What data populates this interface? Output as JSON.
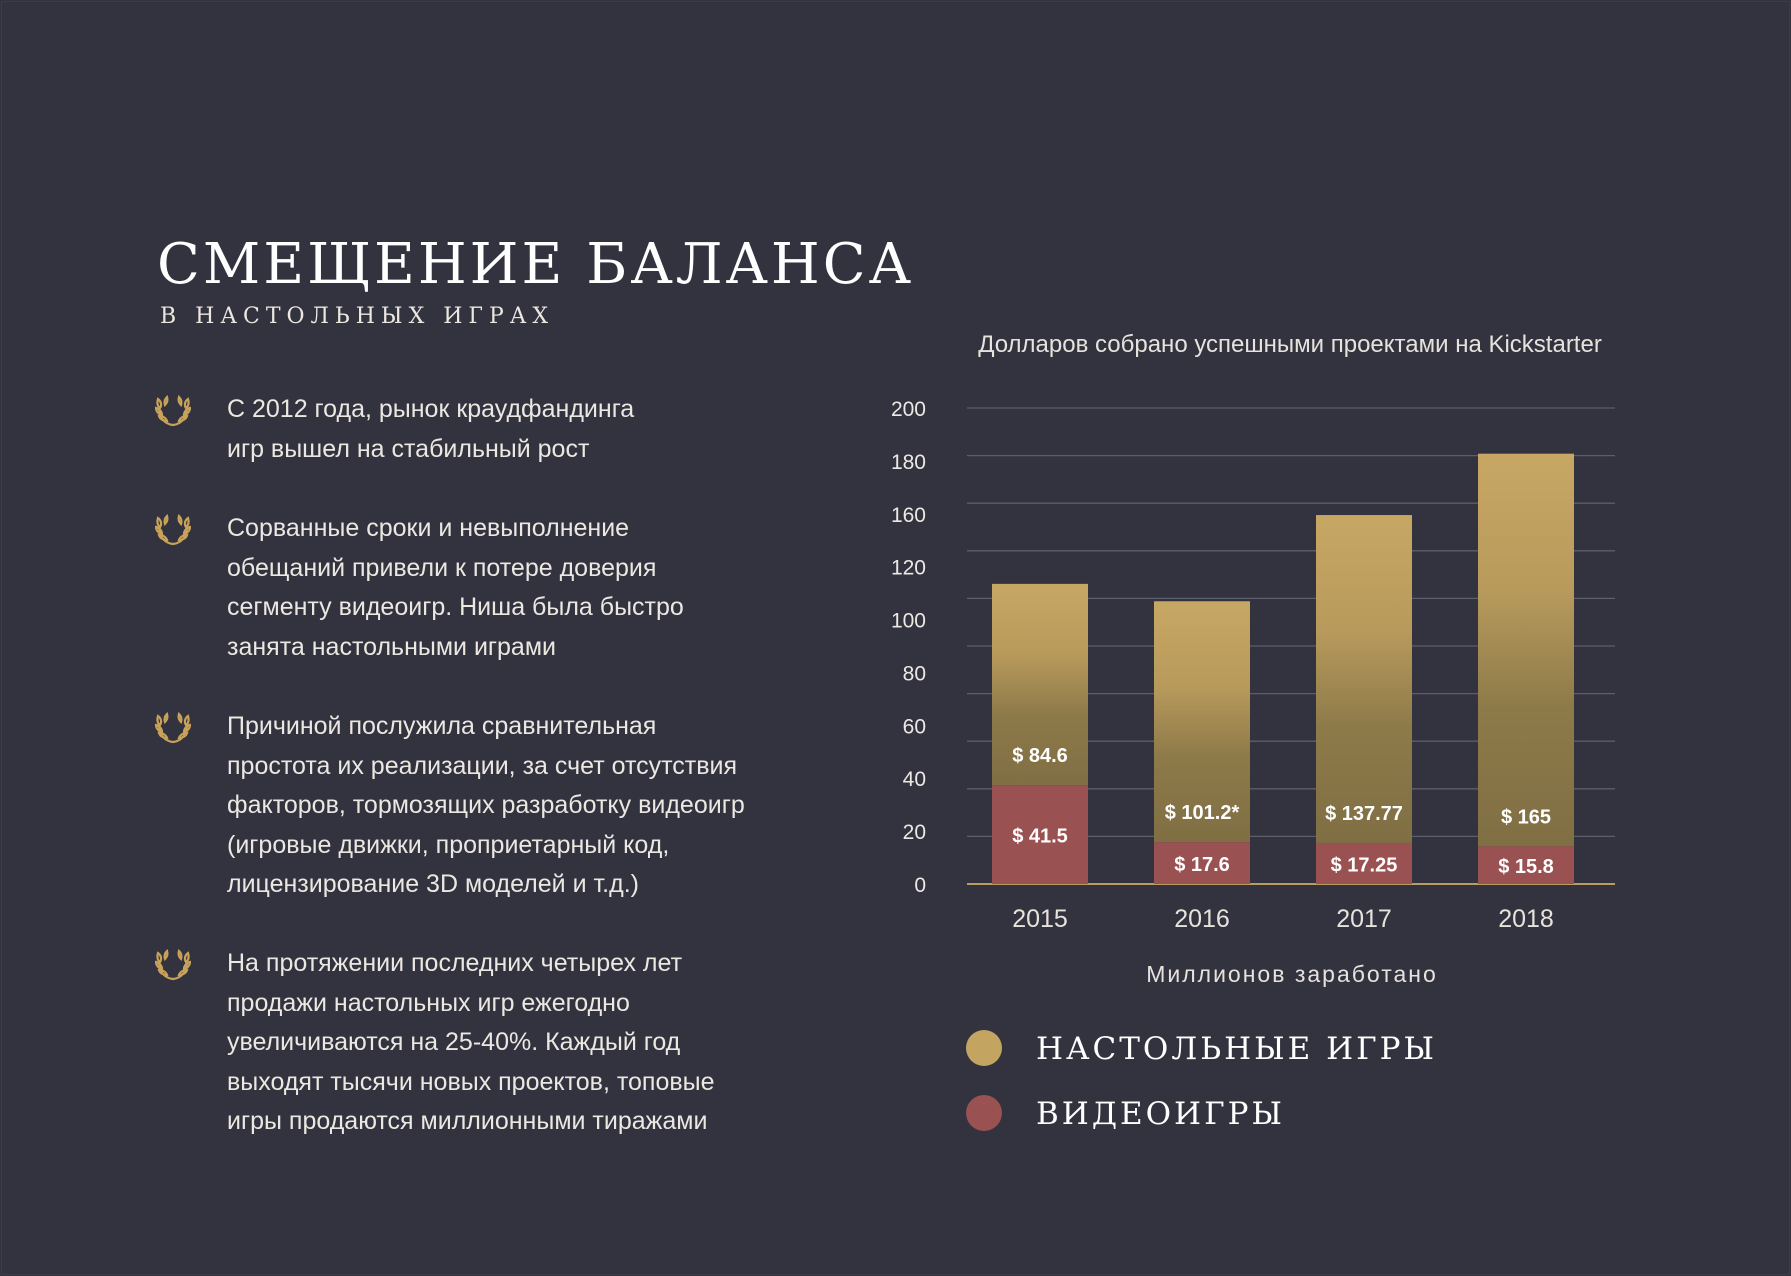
{
  "header": {
    "title": "СМЕЩЕНИЕ БАЛАНСА",
    "subtitle": "В НАСТОЛЬНЫХ ИГРАХ"
  },
  "bullets": [
    {
      "icon": "laurel-icon",
      "text": "С 2012 года, рынок краудфандинга\nигр вышел на стабильный рост"
    },
    {
      "icon": "laurel-icon",
      "text": "Сорванные сроки и невыполнение\nобещаний привели к потере доверия\nсегменту видеоигр. Ниша была быстро\nзанята настольными играми"
    },
    {
      "icon": "laurel-icon",
      "text": "Причиной послужила сравнительная\nпростота их реализации, за счет отсутствия\nфакторов, тормозящих разработку видеоигр\n(игровые движки, проприетарный код,\nлицензирование 3D моделей и т.д.)"
    },
    {
      "icon": "laurel-icon",
      "text": "На протяжении последних четырех лет\nпродажи настольных игр ежегодно\nувеличиваются на 25-40%. Каждый год\nвыходят тысячи новых проектов, топовые\nигры продаются миллионными тиражами"
    }
  ],
  "colors": {
    "background": "#33323f",
    "board": "#c4a461",
    "board_dark": "#8a7646",
    "video": "#9a5152",
    "grid": "#5e5d6b",
    "baseline": "#b89c62",
    "accent_icon": "#c9a25a"
  },
  "chart_data": {
    "type": "bar",
    "stacked": true,
    "title": "Долларов собрано успешными проектами на Kickstarter",
    "xlabel": "Миллионов заработано",
    "ylabel": "",
    "ylim": [
      0,
      200
    ],
    "yticks": [
      0,
      20,
      40,
      60,
      80,
      100,
      120,
      160,
      180,
      200
    ],
    "grid": true,
    "legend_position": "bottom-left",
    "categories": [
      "2015",
      "2016",
      "2017",
      "2018"
    ],
    "series": [
      {
        "name": "ВИДЕОИГРЫ",
        "color": "#9a5152",
        "values": [
          41.5,
          17.6,
          17.25,
          15.8
        ],
        "labels": [
          "$ 41.5",
          "$ 17.6",
          "$ 17.25",
          "$ 15.8"
        ]
      },
      {
        "name": "НАСТОЛЬНЫЕ ИГРЫ",
        "color": "#c4a461",
        "values": [
          84.6,
          101.2,
          137.77,
          165
        ],
        "labels": [
          "$ 84.6",
          "$ 101.2*",
          "$ 137.77",
          "$ 165"
        ]
      }
    ]
  },
  "legend": [
    {
      "label": "НАСТОЛЬНЫЕ ИГРЫ",
      "color": "#c4a461"
    },
    {
      "label": "ВИДЕОИГРЫ",
      "color": "#9a5152"
    }
  ]
}
